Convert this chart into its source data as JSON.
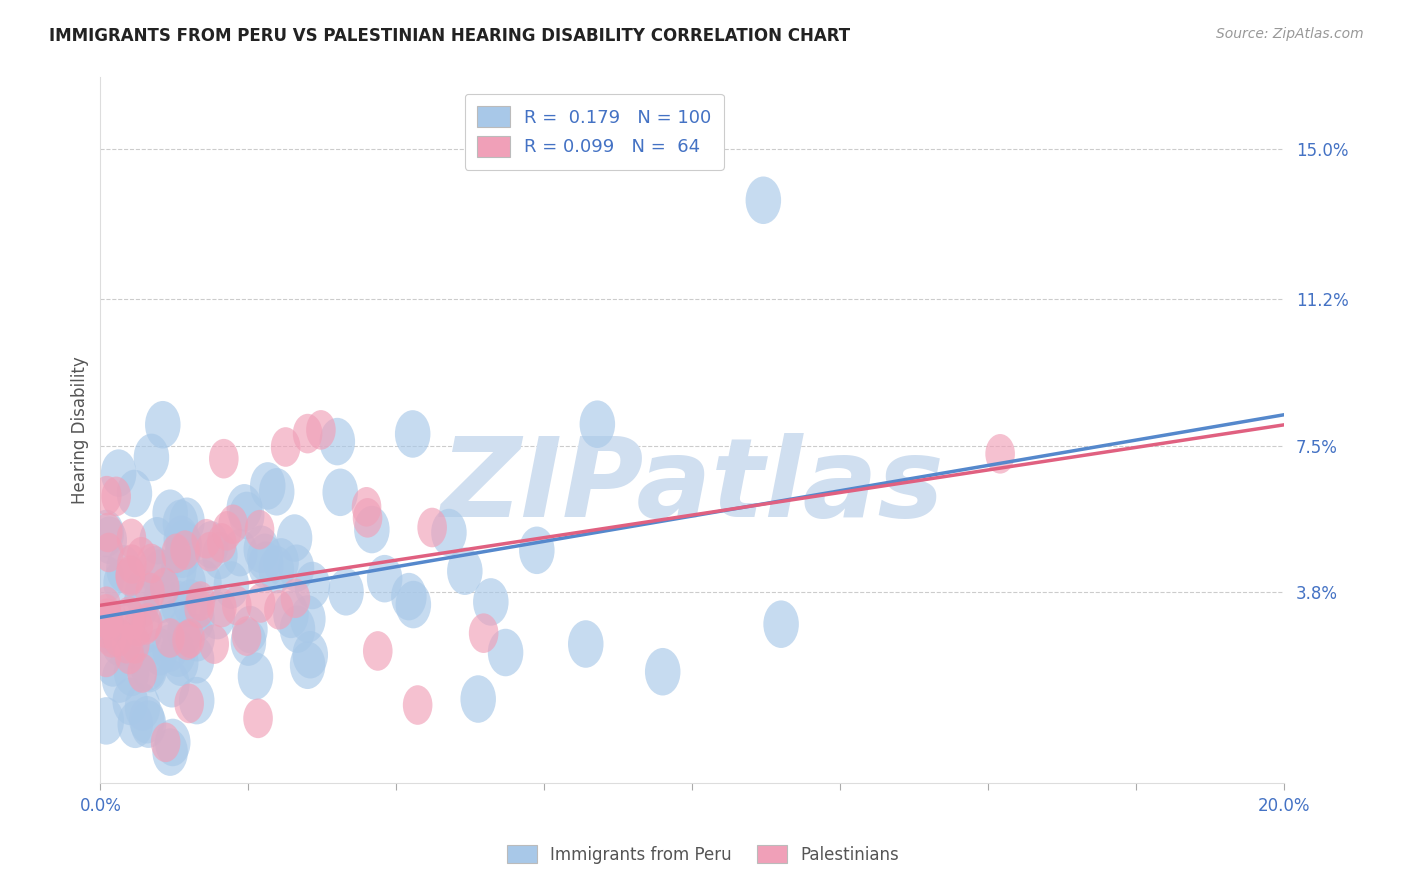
{
  "title": "IMMIGRANTS FROM PERU VS PALESTINIAN HEARING DISABILITY CORRELATION CHART",
  "source_text": "Source: ZipAtlas.com",
  "ylabel": "Hearing Disability",
  "legend_label_1": "Immigrants from Peru",
  "legend_label_2": "Palestinians",
  "r1": 0.179,
  "n1": 100,
  "r2": 0.099,
  "n2": 64,
  "xlim": [
    0.0,
    0.2
  ],
  "ylim": [
    -0.01,
    0.168
  ],
  "yticks": [
    0.038,
    0.075,
    0.112,
    0.15
  ],
  "ytick_labels": [
    "3.8%",
    "7.5%",
    "11.2%",
    "15.0%"
  ],
  "xtick_positions": [
    0.0,
    0.025,
    0.05,
    0.075,
    0.1,
    0.125,
    0.15,
    0.175,
    0.2
  ],
  "xtick_labels_show": [
    "0.0%",
    "",
    "",
    "",
    "",
    "",
    "",
    "",
    "20.0%"
  ],
  "color_blue": "#a8c8e8",
  "color_pink": "#f0a0b8",
  "trend_color_blue": "#5588cc",
  "trend_color_pink": "#e06080",
  "background_color": "#ffffff",
  "watermark_text": "ZIPatlas",
  "watermark_color": "#d0dff0",
  "title_color": "#222222",
  "grid_color": "#cccccc",
  "tick_color": "#4472c4"
}
